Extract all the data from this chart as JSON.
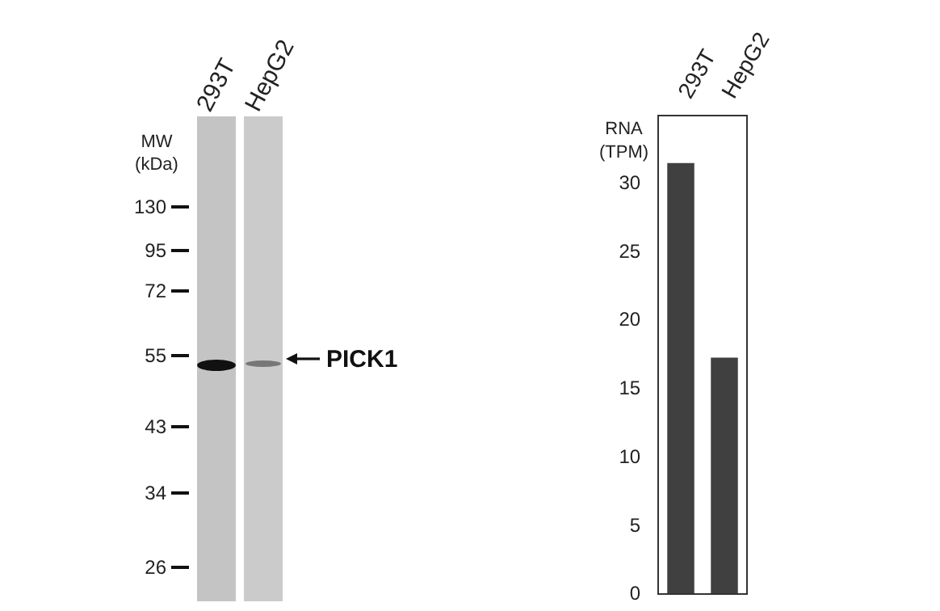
{
  "chart_data": {
    "type": "bar",
    "categories": [
      "293T",
      "HepG2"
    ],
    "values": [
      31.4,
      17.2
    ],
    "color": "#404040",
    "ylabel": "RNA\n(TPM)",
    "ylim": [
      0,
      34.8
    ],
    "yticks": [
      0,
      5,
      10,
      15,
      20,
      25,
      30
    ],
    "grid": false,
    "legend": false,
    "annotations": [
      "293T",
      "HepG2",
      "MW",
      "(kDa)",
      "130",
      "95",
      "72",
      "55",
      "43",
      "34",
      "26",
      "PICK1"
    ]
  }
}
